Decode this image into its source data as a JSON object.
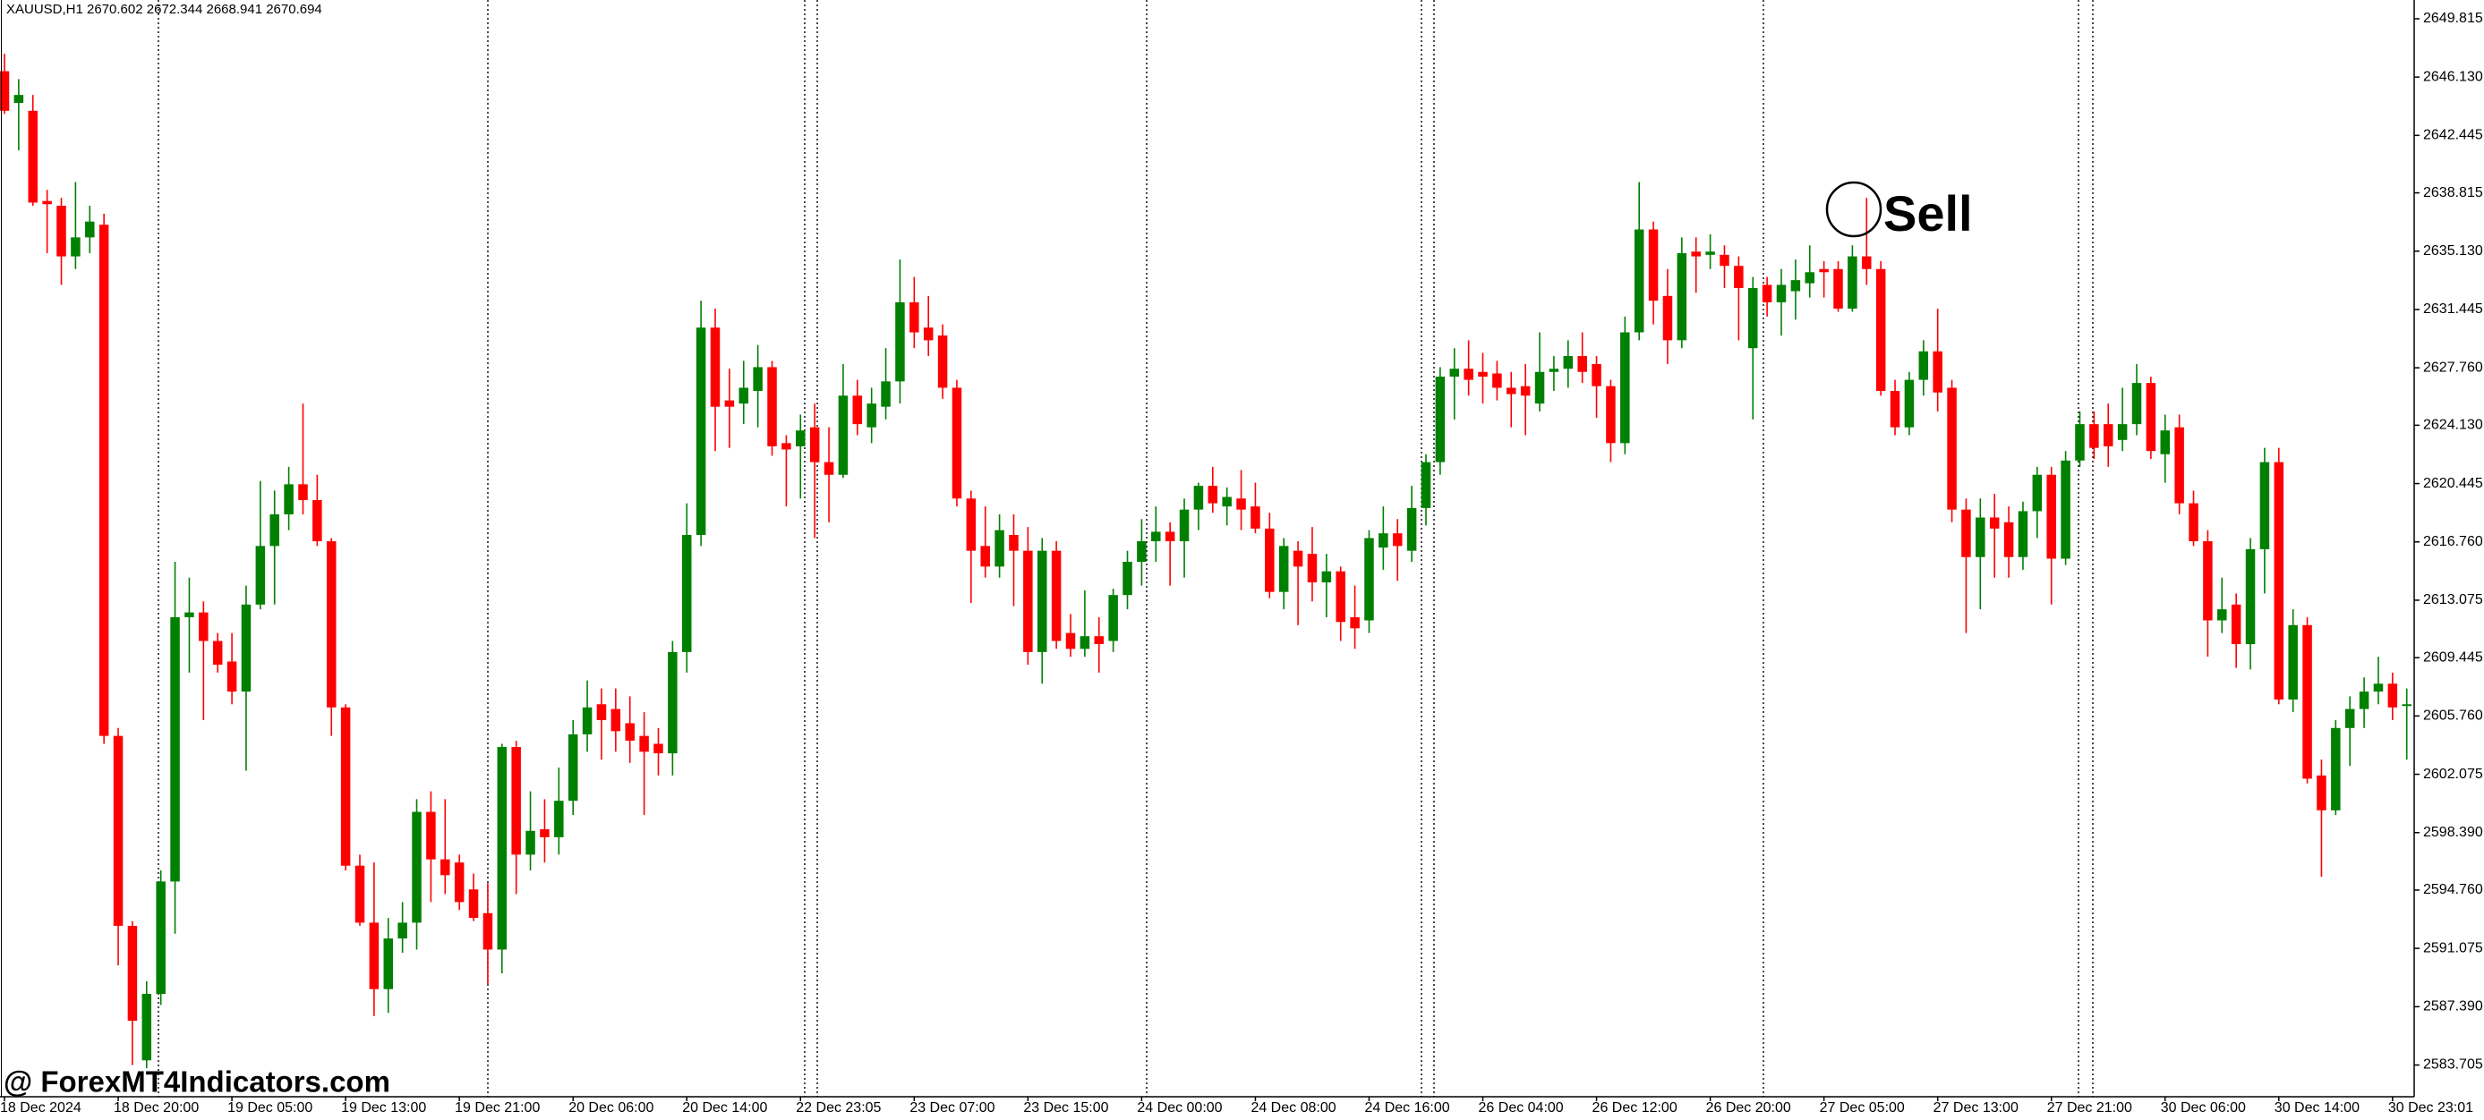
{
  "chart_data": {
    "type": "candlestick",
    "symbol_info": "XAUUSD,H1  2670.602 2672.344 2668.941 2670.694",
    "watermark": "@ ForexMT4Indicators.com",
    "annotation": "Sell",
    "up_color": "#008000",
    "down_color": "#ff0000",
    "ylim": [
      2581.7,
      2651.0
    ],
    "yticks": [
      2649.815,
      {
        "value": 2646.13,
        "label": "2646.130"
      },
      2642.445,
      2638.815,
      {
        "value": 2635.13,
        "label": "2635.130"
      },
      2631.445,
      {
        "value": 2627.76,
        "label": "2627.760"
      },
      {
        "value": 2624.13,
        "label": "2624.130"
      },
      2620.445,
      {
        "value": 2616.76,
        "label": "2616.760"
      },
      2613.075,
      2609.445,
      {
        "value": 2605.76,
        "label": "2605.760"
      },
      2602.075,
      {
        "value": 2598.39,
        "label": "2598.390"
      },
      {
        "value": 2594.76,
        "label": "2594.760"
      },
      2591.075,
      {
        "value": 2587.39,
        "label": "2587.390"
      },
      2583.705
    ],
    "categories": [
      "18 Dec 2024",
      null,
      null,
      null,
      null,
      null,
      null,
      null,
      "18 Dec 20:00",
      null,
      null,
      null,
      null,
      null,
      null,
      null,
      "19 Dec 05:00",
      null,
      null,
      null,
      null,
      null,
      null,
      null,
      "19 Dec 13:00",
      null,
      null,
      null,
      null,
      null,
      null,
      null,
      "19 Dec 21:00",
      null,
      null,
      null,
      null,
      null,
      null,
      null,
      "20 Dec 06:00",
      null,
      null,
      null,
      null,
      null,
      null,
      null,
      "20 Dec 14:00",
      null,
      null,
      null,
      null,
      null,
      null,
      null,
      "22 Dec 23:05",
      null,
      null,
      null,
      null,
      null,
      null,
      null,
      "23 Dec 07:00",
      null,
      null,
      null,
      null,
      null,
      null,
      null,
      "23 Dec 15:00",
      null,
      null,
      null,
      null,
      null,
      null,
      null,
      "24 Dec 00:00",
      null,
      null,
      null,
      null,
      null,
      null,
      null,
      "24 Dec 08:00",
      null,
      null,
      null,
      null,
      null,
      null,
      null,
      "24 Dec 16:00",
      null,
      null,
      null,
      null,
      null,
      null,
      null,
      "26 Dec 04:00",
      null,
      null,
      null,
      null,
      null,
      null,
      null,
      "26 Dec 12:00",
      null,
      null,
      null,
      null,
      null,
      null,
      null,
      "26 Dec 20:00",
      null,
      null,
      null,
      null,
      null,
      null,
      null,
      "27 Dec 05:00",
      null,
      null,
      null,
      null,
      null,
      null,
      null,
      "27 Dec 13:00",
      null,
      null,
      null,
      null,
      null,
      null,
      null,
      "27 Dec 21:00",
      null,
      null,
      null,
      null,
      null,
      null,
      null,
      "30 Dec 06:00",
      null,
      null,
      null,
      null,
      null,
      null,
      null,
      "30 Dec 14:00",
      null,
      null,
      null,
      null,
      null,
      null,
      null,
      "30 Dec 23:01",
      null
    ],
    "open": [
      2646.5,
      2644.5,
      2644.0,
      2638.3,
      2638.0,
      2634.8,
      2636.0,
      2636.8,
      2604.5,
      2592.5,
      2584.0,
      2588.2,
      2595.3,
      2612.0,
      2612.3,
      2610.5,
      2609.2,
      2607.3,
      2612.8,
      2616.5,
      2618.5,
      2620.4,
      2619.4,
      2616.8,
      2606.3,
      2596.3,
      2592.7,
      2588.5,
      2591.7,
      2592.7,
      2599.7,
      2596.7,
      2596.5,
      2594.8,
      2593.3,
      2591.0,
      2603.8,
      2597.0,
      2598.6,
      2598.1,
      2600.4,
      2604.6,
      2606.5,
      2606.2,
      2605.3,
      2604.5,
      2604.0,
      2603.4,
      2609.8,
      2617.2,
      2630.3,
      2625.7,
      2625.5,
      2626.3,
      2627.8,
      2623.0,
      2622.8,
      2624.0,
      2621.8,
      2621.0,
      2626.0,
      2624.0,
      2625.3,
      2626.9,
      2631.9,
      2630.3,
      2629.8,
      2626.5,
      2619.5,
      2616.5,
      2615.2,
      2617.2,
      2616.2,
      2609.8,
      2616.2,
      2611.0,
      2610.0,
      2610.8,
      2610.5,
      2613.4,
      2615.5,
      2616.8,
      2617.4,
      2616.8,
      2618.8,
      2620.3,
      2619.0,
      2619.5,
      2619.0,
      2617.6,
      2613.6,
      2616.2,
      2616.0,
      2614.2,
      2614.9,
      2612.0,
      2611.8,
      2616.4,
      2617.3,
      2616.2,
      2618.9,
      2621.8,
      2627.2,
      2627.7,
      2627.5,
      2627.4,
      2626.5,
      2626.6,
      2625.5,
      2627.5,
      2627.7,
      2628.5,
      2628.0,
      2626.6,
      2623.0,
      2630.0,
      2636.5,
      2632.3,
      2629.5,
      2635.1,
      2634.9,
      2634.9,
      2634.2,
      2629.0,
      2633.0,
      2631.9,
      2632.6,
      2633.1,
      2634.0,
      2634.0,
      2631.5,
      2634.8,
      2634.0,
      2626.3,
      2624.0,
      2627.0,
      2628.8,
      2626.5,
      2618.8,
      2615.8,
      2618.3,
      2618.0,
      2615.8,
      2618.7,
      2621.0,
      2615.7,
      2621.9,
      2624.2,
      2624.2,
      2623.2,
      2624.2,
      2626.8,
      2622.3,
      2624.0,
      2619.2,
      2616.8,
      2611.8,
      2612.8,
      2610.3,
      2616.3,
      2621.8,
      2606.8,
      2611.5,
      2602.0,
      2599.8,
      2605.0,
      2606.2,
      2607.3,
      2607.8,
      2606.4
    ],
    "high": [
      2647.6,
      2646.0,
      2645.0,
      2639.0,
      2638.5,
      2639.5,
      2638.0,
      2637.5,
      2605.0,
      2592.8,
      2589.0,
      2596.0,
      2615.5,
      2614.5,
      2613.0,
      2611.0,
      2611.0,
      2614.0,
      2620.6,
      2620.0,
      2621.5,
      2625.5,
      2621.0,
      2617.0,
      2606.5,
      2597.0,
      2596.5,
      2593.0,
      2594.0,
      2600.5,
      2601.0,
      2600.5,
      2597.0,
      2595.8,
      2595.2,
      2604.0,
      2604.2,
      2601.0,
      2600.5,
      2602.5,
      2605.5,
      2608.0,
      2607.5,
      2607.5,
      2607.0,
      2606.0,
      2605.0,
      2610.5,
      2619.2,
      2632.0,
      2631.5,
      2627.7,
      2628.2,
      2629.2,
      2628.2,
      2623.5,
      2624.8,
      2625.5,
      2624.0,
      2628.0,
      2627.0,
      2626.5,
      2629.0,
      2634.6,
      2633.5,
      2632.3,
      2630.5,
      2627.0,
      2620.0,
      2619.0,
      2618.5,
      2618.5,
      2617.7,
      2617.0,
      2616.8,
      2612.2,
      2613.7,
      2612.0,
      2613.8,
      2616.2,
      2618.2,
      2619.0,
      2618.0,
      2619.5,
      2620.5,
      2621.5,
      2620.2,
      2621.3,
      2620.5,
      2618.6,
      2617.0,
      2616.8,
      2617.7,
      2616.0,
      2615.2,
      2614.0,
      2617.5,
      2619.0,
      2618.2,
      2620.3,
      2622.3,
      2627.8,
      2629.0,
      2629.5,
      2628.7,
      2628.2,
      2627.5,
      2628.0,
      2630.0,
      2628.5,
      2629.5,
      2630.0,
      2628.5,
      2627.0,
      2631.0,
      2639.5,
      2637.0,
      2634.0,
      2636.0,
      2636.0,
      2636.2,
      2635.5,
      2634.8,
      2633.5,
      2633.5,
      2634.0,
      2634.6,
      2635.5,
      2634.5,
      2634.5,
      2635.5,
      2638.5,
      2634.5,
      2627.0,
      2627.5,
      2629.5,
      2631.5,
      2627.0,
      2619.5,
      2619.5,
      2619.8,
      2619.0,
      2619.3,
      2621.5,
      2621.5,
      2622.5,
      2625.0,
      2625.0,
      2625.5,
      2626.5,
      2628.0,
      2627.2,
      2624.8,
      2624.8,
      2620.0,
      2617.5,
      2614.5,
      2613.5,
      2617.0,
      2622.7,
      2622.7,
      2612.5,
      2612.0,
      2603.0,
      2605.5,
      2607.0,
      2608.2,
      2609.5,
      2608.5,
      2607.5
    ],
    "low": [
      2643.8,
      2641.5,
      2638.0,
      2635.0,
      2633.0,
      2634.0,
      2635.0,
      2604.0,
      2590.0,
      2583.7,
      2583.5,
      2587.5,
      2592.0,
      2608.5,
      2605.5,
      2608.5,
      2606.5,
      2602.3,
      2612.5,
      2612.8,
      2617.5,
      2618.5,
      2616.5,
      2604.5,
      2596.0,
      2592.5,
      2586.8,
      2587.0,
      2590.8,
      2591.0,
      2594.0,
      2594.5,
      2593.5,
      2592.8,
      2588.8,
      2589.5,
      2594.5,
      2596.0,
      2596.5,
      2597.0,
      2599.5,
      2603.5,
      2603.0,
      2603.5,
      2602.8,
      2599.5,
      2602.0,
      2602.0,
      2608.5,
      2616.5,
      2622.5,
      2622.7,
      2624.2,
      2624.0,
      2622.2,
      2619.0,
      2619.5,
      2617.0,
      2618.0,
      2620.8,
      2623.5,
      2623.0,
      2624.5,
      2625.5,
      2629.0,
      2628.5,
      2625.8,
      2619.0,
      2612.9,
      2614.5,
      2614.5,
      2612.7,
      2609.0,
      2607.8,
      2610.0,
      2609.5,
      2609.5,
      2608.5,
      2609.8,
      2612.5,
      2614.0,
      2615.5,
      2614.0,
      2614.5,
      2617.5,
      2618.6,
      2617.8,
      2617.5,
      2617.3,
      2613.2,
      2612.5,
      2611.5,
      2613.0,
      2612.0,
      2610.5,
      2610.0,
      2611.0,
      2615.0,
      2614.3,
      2615.5,
      2617.8,
      2621.0,
      2624.5,
      2626.0,
      2625.5,
      2625.7,
      2624.0,
      2623.5,
      2625.0,
      2626.3,
      2626.5,
      2626.8,
      2624.6,
      2621.8,
      2622.3,
      2629.5,
      2630.5,
      2628.0,
      2629.0,
      2632.5,
      2634.0,
      2632.8,
      2629.5,
      2624.5,
      2631.0,
      2629.8,
      2630.8,
      2632.2,
      2632.2,
      2631.3,
      2631.3,
      2633.0,
      2626.0,
      2623.5,
      2623.5,
      2626.0,
      2625.0,
      2618.0,
      2611.0,
      2612.5,
      2614.5,
      2614.5,
      2615.0,
      2617.0,
      2612.8,
      2615.3,
      2621.5,
      2622.0,
      2621.5,
      2622.5,
      2623.5,
      2622.0,
      2620.5,
      2618.5,
      2616.5,
      2609.5,
      2611.0,
      2608.8,
      2608.7,
      2613.5,
      2606.5,
      2606.0,
      2601.5,
      2595.6,
      2599.5,
      2602.6,
      2605.0,
      2606.5,
      2605.5,
      2603.0
    ],
    "close": [
      2644.0,
      2645.0,
      2638.2,
      2638.1,
      2634.8,
      2636.0,
      2637.0,
      2604.5,
      2592.5,
      2586.5,
      2588.2,
      2595.3,
      2612.0,
      2612.3,
      2610.5,
      2609.0,
      2607.3,
      2612.8,
      2616.5,
      2618.5,
      2620.4,
      2619.4,
      2616.8,
      2606.3,
      2596.3,
      2592.7,
      2588.5,
      2591.7,
      2592.7,
      2599.7,
      2596.7,
      2595.7,
      2594.0,
      2593.0,
      2591.0,
      2603.8,
      2597.0,
      2598.5,
      2598.1,
      2600.4,
      2604.6,
      2606.3,
      2605.5,
      2604.8,
      2604.2,
      2603.5,
      2603.4,
      2609.8,
      2617.2,
      2630.3,
      2625.3,
      2625.3,
      2626.5,
      2627.8,
      2622.8,
      2622.6,
      2623.8,
      2621.8,
      2621.0,
      2626.0,
      2624.2,
      2625.5,
      2626.9,
      2631.9,
      2630.0,
      2629.5,
      2626.5,
      2619.5,
      2616.2,
      2615.2,
      2617.5,
      2616.2,
      2609.8,
      2616.2,
      2610.5,
      2610.0,
      2610.8,
      2610.3,
      2613.4,
      2615.5,
      2616.8,
      2617.4,
      2616.8,
      2618.8,
      2620.3,
      2619.2,
      2619.6,
      2618.8,
      2617.6,
      2613.6,
      2616.5,
      2615.2,
      2614.2,
      2614.9,
      2611.7,
      2611.3,
      2617.0,
      2617.3,
      2616.5,
      2618.9,
      2621.8,
      2627.2,
      2627.7,
      2627.0,
      2627.2,
      2626.5,
      2626.1,
      2626.0,
      2627.5,
      2627.7,
      2628.5,
      2627.5,
      2626.6,
      2623.0,
      2630.0,
      2636.5,
      2632.0,
      2629.5,
      2635.0,
      2634.8,
      2635.1,
      2634.2,
      2632.8,
      2632.8,
      2631.9,
      2633.0,
      2633.3,
      2633.8,
      2633.8,
      2631.5,
      2634.8,
      2634.0,
      2626.3,
      2624.0,
      2627.0,
      2628.8,
      2626.2,
      2618.8,
      2615.8,
      2618.3,
      2617.6,
      2615.8,
      2618.7,
      2621.0,
      2615.7,
      2621.9,
      2624.2,
      2622.7,
      2622.8,
      2624.2,
      2626.8,
      2622.5,
      2623.8,
      2619.2,
      2616.8,
      2611.8,
      2612.5,
      2610.3,
      2616.3,
      2621.8,
      2606.8,
      2611.5,
      2601.8,
      2599.8,
      2605.0,
      2606.2,
      2607.3,
      2607.8,
      2606.3,
      2606.5
    ]
  }
}
